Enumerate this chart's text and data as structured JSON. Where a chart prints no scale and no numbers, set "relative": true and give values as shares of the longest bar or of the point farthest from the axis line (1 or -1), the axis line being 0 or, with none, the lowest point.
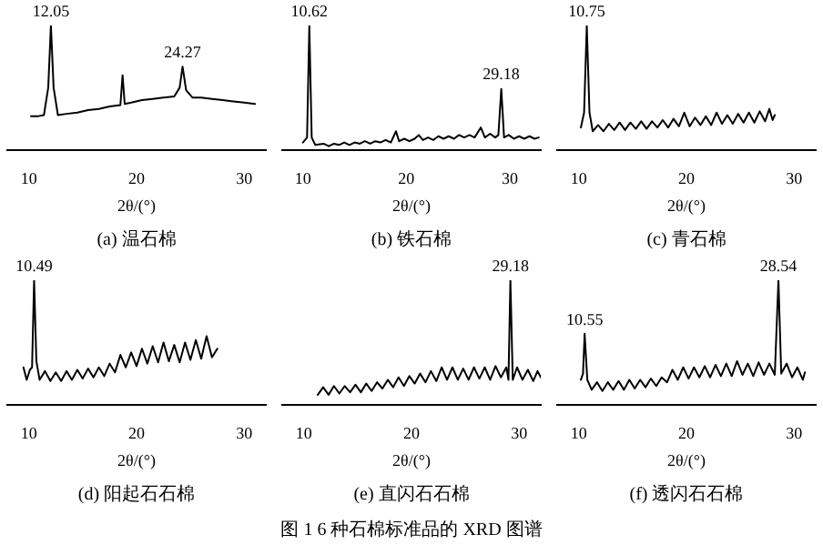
{
  "chart_data": [
    {
      "type": "line",
      "title": "(a) 温石棉",
      "xlabel": "2θ/(°)",
      "relative": true,
      "color": "#000000",
      "xlim": [
        8,
        32
      ],
      "xticks": [
        10,
        20,
        30
      ],
      "x": [
        10.2,
        10.8,
        11.4,
        11.8,
        12.05,
        12.3,
        12.7,
        13.5,
        14.5,
        15.5,
        16.5,
        17.5,
        18.5,
        18.7,
        18.9,
        19.5,
        20.5,
        21.5,
        22.5,
        23.5,
        24.0,
        24.27,
        24.6,
        25.2,
        26,
        27,
        28,
        29,
        30,
        31
      ],
      "values": [
        0.27,
        0.27,
        0.28,
        0.5,
        1,
        0.5,
        0.28,
        0.29,
        0.3,
        0.32,
        0.33,
        0.35,
        0.36,
        0.6,
        0.37,
        0.38,
        0.4,
        0.41,
        0.42,
        0.43,
        0.5,
        0.67,
        0.48,
        0.42,
        0.42,
        0.41,
        0.4,
        0.39,
        0.38,
        0.37
      ],
      "annotations": [
        {
          "text": "12.05",
          "x": 12.05,
          "y": 1
        },
        {
          "text": "24.27",
          "x": 24.27,
          "y": 0.67
        }
      ]
    },
    {
      "type": "line",
      "title": "(b) 铁石棉",
      "xlabel": "2θ/(°)",
      "relative": true,
      "color": "#000000",
      "xlim": [
        8,
        33
      ],
      "xticks": [
        10,
        20,
        30
      ],
      "x": [
        10,
        10.4,
        10.62,
        10.85,
        11.2,
        12,
        12.5,
        13,
        13.5,
        14,
        14.5,
        15,
        15.5,
        16,
        16.5,
        17,
        17.5,
        18,
        18.5,
        19,
        19.3,
        19.8,
        20.3,
        20.8,
        21.2,
        21.6,
        22.1,
        22.6,
        23.1,
        23.6,
        24.1,
        24.6,
        25.1,
        25.6,
        26.1,
        26.6,
        27.2,
        27.6,
        28.1,
        28.6,
        28.9,
        29.18,
        29.45,
        29.9,
        30.4,
        30.9,
        31.4,
        31.9,
        32.4,
        32.8
      ],
      "values": [
        0.06,
        0.1,
        1,
        0.1,
        0.04,
        0.05,
        0.03,
        0.05,
        0.04,
        0.06,
        0.04,
        0.06,
        0.05,
        0.07,
        0.05,
        0.07,
        0.06,
        0.08,
        0.06,
        0.15,
        0.07,
        0.09,
        0.07,
        0.09,
        0.12,
        0.08,
        0.1,
        0.08,
        0.11,
        0.09,
        0.11,
        0.09,
        0.12,
        0.1,
        0.12,
        0.1,
        0.18,
        0.1,
        0.13,
        0.1,
        0.12,
        0.49,
        0.1,
        0.12,
        0.09,
        0.11,
        0.09,
        0.11,
        0.09,
        0.1
      ],
      "annotations": [
        {
          "text": "10.62",
          "x": 10.62,
          "y": 1
        },
        {
          "text": "29.18",
          "x": 29.18,
          "y": 0.49
        }
      ]
    },
    {
      "type": "line",
      "title": "(c) 青石棉",
      "xlabel": "2θ/(°)",
      "relative": true,
      "color": "#000000",
      "xlim": [
        8,
        32
      ],
      "xticks": [
        10,
        20,
        30
      ],
      "x": [
        10.2,
        10.5,
        10.75,
        11.0,
        11.3,
        11.8,
        12.3,
        12.8,
        13.3,
        13.8,
        14.3,
        14.8,
        15.3,
        15.8,
        16.3,
        16.8,
        17.3,
        17.8,
        18.3,
        18.8,
        19.3,
        19.8,
        20.3,
        20.8,
        21.3,
        21.8,
        22.3,
        22.8,
        23.3,
        23.8,
        24.3,
        24.8,
        25.3,
        25.8,
        26.3,
        26.8,
        27.3,
        27.7,
        28.0,
        28.2
      ],
      "values": [
        0.18,
        0.3,
        1,
        0.3,
        0.15,
        0.2,
        0.15,
        0.21,
        0.16,
        0.22,
        0.16,
        0.22,
        0.17,
        0.23,
        0.17,
        0.23,
        0.18,
        0.24,
        0.18,
        0.25,
        0.19,
        0.3,
        0.19,
        0.26,
        0.2,
        0.27,
        0.2,
        0.3,
        0.21,
        0.28,
        0.21,
        0.29,
        0.22,
        0.3,
        0.22,
        0.31,
        0.23,
        0.33,
        0.24,
        0.28
      ],
      "annotations": [
        {
          "text": "10.75",
          "x": 10.75,
          "y": 1
        }
      ]
    },
    {
      "type": "line",
      "title": "(d) 阳起石石棉",
      "xlabel": "2θ/(°)",
      "relative": true,
      "color": "#000000",
      "xlim": [
        8,
        32
      ],
      "xticks": [
        10,
        20,
        30
      ],
      "x": [
        9.5,
        9.8,
        10.1,
        10.3,
        10.49,
        10.7,
        11,
        11.5,
        12,
        12.5,
        13,
        13.5,
        14,
        14.5,
        15,
        15.5,
        16,
        16.5,
        17,
        17.5,
        18,
        18.5,
        19,
        19.5,
        20,
        20.5,
        21,
        21.5,
        22,
        22.5,
        23,
        23.5,
        24,
        24.5,
        25,
        25.5,
        26,
        26.5,
        27,
        27.5
      ],
      "values": [
        0.3,
        0.2,
        0.28,
        0.3,
        1,
        0.35,
        0.2,
        0.27,
        0.19,
        0.26,
        0.19,
        0.27,
        0.2,
        0.28,
        0.21,
        0.29,
        0.22,
        0.3,
        0.23,
        0.33,
        0.26,
        0.4,
        0.3,
        0.42,
        0.31,
        0.45,
        0.33,
        0.47,
        0.34,
        0.5,
        0.35,
        0.48,
        0.34,
        0.5,
        0.36,
        0.52,
        0.37,
        0.55,
        0.38,
        0.45
      ],
      "annotations": [
        {
          "text": "10.49",
          "x": 10.49,
          "y": 1
        }
      ]
    },
    {
      "type": "line",
      "title": "(e) 直闪石石棉",
      "xlabel": "2θ/(°)",
      "relative": true,
      "color": "#000000",
      "xlim": [
        8,
        32
      ],
      "xticks": [
        10,
        20,
        30
      ],
      "x": [
        11.3,
        11.8,
        12.3,
        12.8,
        13.3,
        13.8,
        14.3,
        14.8,
        15.3,
        15.8,
        16.3,
        16.8,
        17.3,
        17.8,
        18.3,
        18.8,
        19.3,
        19.8,
        20.3,
        20.8,
        21.3,
        21.8,
        22.3,
        22.8,
        23.3,
        23.8,
        24.3,
        24.8,
        25.3,
        25.8,
        26.3,
        26.8,
        27.3,
        27.8,
        28.3,
        28.8,
        29.0,
        29.18,
        29.4,
        29.8,
        30.3,
        30.8,
        31.3,
        31.7,
        32
      ],
      "values": [
        0.08,
        0.14,
        0.08,
        0.15,
        0.09,
        0.15,
        0.1,
        0.16,
        0.1,
        0.17,
        0.11,
        0.18,
        0.13,
        0.2,
        0.14,
        0.22,
        0.15,
        0.23,
        0.17,
        0.25,
        0.18,
        0.27,
        0.19,
        0.3,
        0.2,
        0.3,
        0.2,
        0.29,
        0.2,
        0.3,
        0.21,
        0.3,
        0.2,
        0.31,
        0.22,
        0.3,
        0.2,
        1,
        0.2,
        0.3,
        0.2,
        0.28,
        0.19,
        0.27,
        0.22
      ],
      "annotations": [
        {
          "text": "29.18",
          "x": 29.18,
          "y": 1
        }
      ]
    },
    {
      "type": "line",
      "title": "(f) 透闪石石棉",
      "xlabel": "2θ/(°)",
      "relative": true,
      "color": "#000000",
      "xlim": [
        8,
        32
      ],
      "xticks": [
        10,
        20,
        30
      ],
      "x": [
        10.2,
        10.4,
        10.55,
        10.8,
        11.2,
        11.7,
        12.2,
        12.7,
        13.2,
        13.7,
        14.2,
        14.7,
        15.2,
        15.7,
        16.2,
        16.7,
        17.2,
        17.7,
        18.2,
        18.7,
        19.2,
        19.7,
        20.2,
        20.7,
        21.2,
        21.7,
        22.2,
        22.7,
        23.2,
        23.7,
        24.2,
        24.7,
        25.2,
        25.7,
        26.2,
        26.7,
        27.2,
        27.7,
        28.2,
        28.54,
        28.8,
        29.3,
        29.8,
        30.3,
        30.8,
        31
      ],
      "values": [
        0.2,
        0.25,
        0.57,
        0.2,
        0.12,
        0.18,
        0.11,
        0.18,
        0.12,
        0.19,
        0.12,
        0.2,
        0.13,
        0.2,
        0.14,
        0.21,
        0.15,
        0.22,
        0.18,
        0.28,
        0.2,
        0.3,
        0.21,
        0.3,
        0.22,
        0.31,
        0.22,
        0.32,
        0.23,
        0.33,
        0.23,
        0.35,
        0.24,
        0.33,
        0.23,
        0.34,
        0.24,
        0.33,
        0.24,
        1,
        0.25,
        0.33,
        0.22,
        0.3,
        0.2,
        0.26
      ],
      "annotations": [
        {
          "text": "10.55",
          "x": 10.55,
          "y": 0.57
        },
        {
          "text": "28.54",
          "x": 28.54,
          "y": 1
        }
      ]
    },
    {
      "type": "other",
      "annotations": [
        "图 1 6 种石棉标准品的 XRD 图谱"
      ]
    }
  ]
}
